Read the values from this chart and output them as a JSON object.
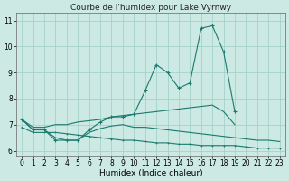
{
  "title": "Courbe de l'humidex pour Lake Vyrnwy",
  "xlabel": "Humidex (Indice chaleur)",
  "x_values": [
    0,
    1,
    2,
    3,
    4,
    5,
    6,
    7,
    8,
    9,
    10,
    11,
    12,
    13,
    14,
    15,
    16,
    17,
    18,
    19,
    20,
    21,
    22,
    23
  ],
  "line1": [
    7.2,
    6.8,
    6.8,
    6.4,
    6.4,
    6.4,
    6.8,
    7.1,
    7.3,
    7.3,
    7.4,
    8.3,
    9.3,
    9.0,
    8.4,
    8.6,
    10.7,
    10.8,
    9.8,
    7.5,
    null,
    null,
    null,
    null
  ],
  "line2": [
    7.2,
    6.9,
    6.9,
    7.0,
    7.0,
    7.1,
    7.15,
    7.2,
    7.3,
    7.35,
    7.4,
    7.45,
    7.5,
    7.55,
    7.6,
    7.65,
    7.7,
    7.75,
    7.5,
    7.0,
    null,
    null,
    null,
    null
  ],
  "line3": [
    6.9,
    6.7,
    6.7,
    6.7,
    6.65,
    6.6,
    6.55,
    6.5,
    6.45,
    6.4,
    6.4,
    6.35,
    6.3,
    6.3,
    6.25,
    6.25,
    6.2,
    6.2,
    6.2,
    6.2,
    6.15,
    6.1,
    6.1,
    6.1
  ],
  "line4": [
    7.2,
    6.8,
    6.8,
    6.5,
    6.4,
    6.4,
    6.7,
    6.85,
    6.95,
    7.0,
    6.9,
    6.9,
    6.85,
    6.8,
    6.75,
    6.7,
    6.65,
    6.6,
    6.55,
    6.5,
    6.45,
    6.4,
    6.4,
    6.35
  ],
  "bg_color": "#cce9e4",
  "grid_color": "#9dcdc7",
  "line_color": "#1a7a6e",
  "ylim": [
    5.8,
    11.3
  ],
  "xlim": [
    -0.5,
    23.5
  ],
  "yticks": [
    6,
    7,
    8,
    9,
    10,
    11
  ],
  "xticks": [
    0,
    1,
    2,
    3,
    4,
    5,
    6,
    7,
    8,
    9,
    10,
    11,
    12,
    13,
    14,
    15,
    16,
    17,
    18,
    19,
    20,
    21,
    22,
    23
  ],
  "title_fontsize": 6.5,
  "label_fontsize": 6.5,
  "tick_fontsize": 5.5
}
